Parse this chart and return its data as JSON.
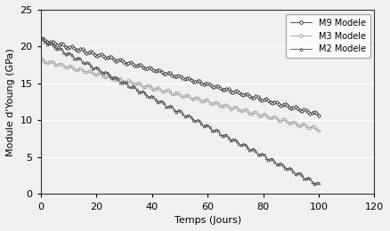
{
  "title": "",
  "xlabel": "Temps (Jours)",
  "ylabel": "Module d'Young (GPa)",
  "xlim": [
    0,
    120
  ],
  "ylim": [
    0,
    25
  ],
  "xticks": [
    0,
    20,
    40,
    60,
    80,
    100,
    120
  ],
  "yticks": [
    0,
    5,
    10,
    15,
    20,
    25
  ],
  "series": [
    {
      "label": "M9 Modele",
      "start": 21.0,
      "end": 10.8,
      "t_end": 100,
      "wave_amp": 0.18,
      "wave_freq": 1.8,
      "wave_phase": 0.0,
      "marker": "D",
      "markersize": 2.0,
      "color": "#111111",
      "linewidth": 0.5,
      "n_points": 800,
      "markevery": 6
    },
    {
      "label": "M3 Modele",
      "start": 18.2,
      "end": 8.8,
      "t_end": 100,
      "wave_amp": 0.22,
      "wave_freq": 1.8,
      "wave_phase": 1.0,
      "marker": "o",
      "markersize": 2.0,
      "color": "#888888",
      "linewidth": 0.5,
      "n_points": 800,
      "markevery": 6
    },
    {
      "label": "M2 Modele",
      "start": 21.0,
      "end": 1.3,
      "t_end": 100,
      "wave_amp": 0.22,
      "wave_freq": 1.9,
      "wave_phase": 0.5,
      "marker": "^",
      "markersize": 2.0,
      "color": "#333333",
      "linewidth": 0.5,
      "n_points": 800,
      "markevery": 6
    }
  ],
  "legend_loc": "upper right",
  "background_color": "#f0f0f0",
  "grid_color": "#ffffff",
  "grid_linewidth": 1.0
}
